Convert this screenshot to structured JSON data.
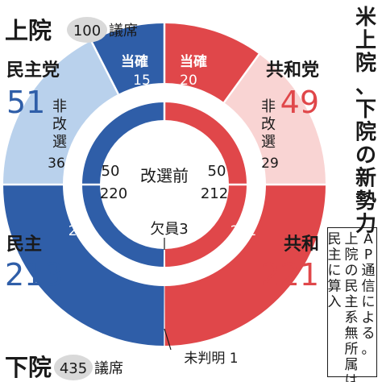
{
  "chart_data": {
    "type": "pie",
    "title": "米上院、下院の新勢力",
    "note_lines": [
      "AP通信による。",
      "上院の民主系無所属は",
      "民主に算入"
    ],
    "senate": {
      "label": "上院",
      "total_text": "100",
      "unit": "議席",
      "total": 100,
      "dem": {
        "party": "民主党",
        "total": 51,
        "confirmed": 15,
        "not_up": 36
      },
      "rep": {
        "party": "共和党",
        "total": 49,
        "confirmed": 20,
        "not_up": 29
      },
      "confirmed_label": "当確",
      "not_up_label": "非改選"
    },
    "before": {
      "label": "改選前",
      "senate_dem": 50,
      "senate_rep": 50,
      "house_dem": 220,
      "house_rep": 212,
      "vacant_label": "欠員3",
      "vacant": 3
    },
    "house": {
      "label": "下院",
      "total_text": "435",
      "unit": "議席",
      "total": 435,
      "dem": {
        "party": "民主",
        "total": 213
      },
      "rep": {
        "party": "共和",
        "total": 221
      },
      "undecided_label": "未判明 1",
      "undecided": 1
    },
    "colors": {
      "dem": "#2f5ea8",
      "dem_light": "#b9d1ec",
      "rep": "#e0474a",
      "rep_light": "#f9d4d3",
      "text": "#1a1a1a"
    }
  }
}
